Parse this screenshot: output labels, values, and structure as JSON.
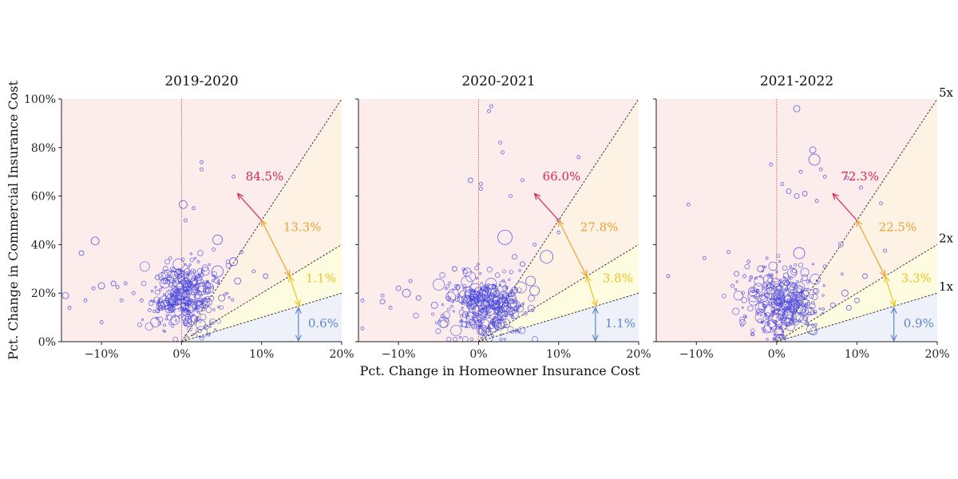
{
  "chart_data": {
    "type": "scatter",
    "xlabel": "Pct. Change in Homeowner Insurance Cost",
    "ylabel": "Pct. Change in Commercial Insurance Cost",
    "xlim": [
      -15,
      20
    ],
    "ylim": [
      0,
      100
    ],
    "x_ticks": [
      "−10%",
      "0%",
      "10%",
      "20%"
    ],
    "x_tick_values": [
      -10,
      0,
      10,
      20
    ],
    "y_ticks": [
      "0%",
      "20%",
      "40%",
      "60%",
      "80%",
      "100%"
    ],
    "y_tick_values": [
      0,
      20,
      40,
      60,
      80,
      100
    ],
    "reference_lines": [
      {
        "label": "5x",
        "slope": 5
      },
      {
        "label": "2x",
        "slope": 2
      },
      {
        "label": "1x",
        "slope": 1
      }
    ],
    "region_colors": {
      "above_5x": "#fdecec",
      "between_2x_5x": "#fdf2e4",
      "between_1x_2x": "#fdfbe0",
      "below_1x": "#eef1fa"
    },
    "label_colors": {
      "above_5x": "#d6264f",
      "between_2x_5x": "#f0a030",
      "between_1x_2x": "#eec21e",
      "below_1x": "#5b86c8"
    },
    "marker_color": "#4444dd",
    "panels": [
      {
        "title": "2019-2020",
        "shares": {
          "above_5x": "84.5%",
          "between_2x_5x": "13.3%",
          "between_1x_2x": "1.1%",
          "below_1x": "0.6%"
        },
        "points": [
          {
            "x": -14.5,
            "y": 19,
            "s": 4
          },
          {
            "x": -14,
            "y": 14,
            "s": 2
          },
          {
            "x": -12.5,
            "y": 36.5,
            "s": 3
          },
          {
            "x": -12,
            "y": 17,
            "s": 2
          },
          {
            "x": -11,
            "y": 22,
            "s": 2
          },
          {
            "x": -10.8,
            "y": 41.5,
            "s": 5
          },
          {
            "x": -10,
            "y": 8,
            "s": 2
          },
          {
            "x": -10,
            "y": 23,
            "s": 4
          },
          {
            "x": -8.5,
            "y": 24,
            "s": 3
          },
          {
            "x": -8,
            "y": 22.5,
            "s": 2
          },
          {
            "x": -7.5,
            "y": 17,
            "s": 2
          },
          {
            "x": -7,
            "y": 24,
            "s": 2
          },
          {
            "x": -6,
            "y": 20,
            "s": 2
          },
          {
            "x": -5,
            "y": 17,
            "s": 2
          },
          {
            "x": -4,
            "y": 13,
            "s": 2
          },
          {
            "x": -3,
            "y": 26.5,
            "s": 3
          },
          {
            "x": -2.5,
            "y": 15,
            "s": 4
          },
          {
            "x": -2,
            "y": 25,
            "s": 3
          },
          {
            "x": 0.2,
            "y": 56.5,
            "s": 5
          },
          {
            "x": 0.5,
            "y": 50,
            "s": 2
          },
          {
            "x": 1.5,
            "y": 55,
            "s": 2
          },
          {
            "x": 2.5,
            "y": 74,
            "s": 2
          },
          {
            "x": 2.5,
            "y": 71,
            "s": 2
          },
          {
            "x": 4.5,
            "y": 42,
            "s": 6
          },
          {
            "x": 4,
            "y": 38,
            "s": 2
          },
          {
            "x": 6.5,
            "y": 68,
            "s": 2
          },
          {
            "x": 6.5,
            "y": 33,
            "s": 5
          },
          {
            "x": 5,
            "y": 18,
            "s": 4
          },
          {
            "x": 4.5,
            "y": 29,
            "s": 7
          },
          {
            "x": 7.5,
            "y": 37,
            "s": 2
          },
          {
            "x": 10.5,
            "y": 27,
            "s": 3
          },
          {
            "x": 7,
            "y": 25,
            "s": 4
          },
          {
            "x": 9,
            "y": 29,
            "s": 2
          }
        ],
        "cluster": {
          "cx": 0.7,
          "cy": 19,
          "sx": 2.2,
          "sy": 7,
          "n": 340,
          "seed": 11
        }
      },
      {
        "title": "2020-2021",
        "shares": {
          "above_5x": "66.0%",
          "between_2x_5x": "27.8%",
          "between_1x_2x": "3.8%",
          "below_1x": "1.1%"
        },
        "points": [
          {
            "x": -14.5,
            "y": 5.5,
            "s": 2
          },
          {
            "x": -14.5,
            "y": 17,
            "s": 2
          },
          {
            "x": -12,
            "y": 19,
            "s": 2
          },
          {
            "x": -12,
            "y": 16.5,
            "s": 3
          },
          {
            "x": -11,
            "y": 14,
            "s": 2
          },
          {
            "x": -10,
            "y": 22,
            "s": 3
          },
          {
            "x": -9,
            "y": 20,
            "s": 5
          },
          {
            "x": -8.5,
            "y": 25,
            "s": 2
          },
          {
            "x": -7.5,
            "y": 18,
            "s": 3
          },
          {
            "x": -5.5,
            "y": 15,
            "s": 4
          },
          {
            "x": -3,
            "y": 30,
            "s": 3
          },
          {
            "x": -1,
            "y": 66.5,
            "s": 3
          },
          {
            "x": 0.3,
            "y": 65,
            "s": 2
          },
          {
            "x": 0.3,
            "y": 63,
            "s": 2
          },
          {
            "x": 1.3,
            "y": 95,
            "s": 2
          },
          {
            "x": 1.6,
            "y": 97,
            "s": 2
          },
          {
            "x": 2.7,
            "y": 82,
            "s": 2
          },
          {
            "x": 3,
            "y": 78,
            "s": 2
          },
          {
            "x": 3.3,
            "y": 43,
            "s": 9
          },
          {
            "x": 5.5,
            "y": 66.5,
            "s": 2
          },
          {
            "x": 8.5,
            "y": 35,
            "s": 8
          },
          {
            "x": 7,
            "y": 40,
            "s": 2
          },
          {
            "x": 10,
            "y": 50,
            "s": 2
          },
          {
            "x": 12.5,
            "y": 76,
            "s": 2
          },
          {
            "x": 7,
            "y": 21,
            "s": 6
          },
          {
            "x": 6.5,
            "y": 25,
            "s": 6
          },
          {
            "x": 4.5,
            "y": 35,
            "s": 3
          },
          {
            "x": 5.5,
            "y": 32,
            "s": 3
          },
          {
            "x": 4,
            "y": 60,
            "s": 2
          },
          {
            "x": 10,
            "y": 45,
            "s": 2
          }
        ],
        "cluster": {
          "cx": 0.9,
          "cy": 14,
          "sx": 2.4,
          "sy": 6.5,
          "n": 340,
          "seed": 23
        }
      },
      {
        "title": "2021-2022",
        "shares": {
          "above_5x": "72.3%",
          "between_2x_5x": "22.5%",
          "between_1x_2x": "3.3%",
          "below_1x": "0.9%"
        },
        "points": [
          {
            "x": -13.5,
            "y": 27,
            "s": 2
          },
          {
            "x": -11,
            "y": 56.5,
            "s": 2
          },
          {
            "x": -9,
            "y": 34.5,
            "s": 2
          },
          {
            "x": -6,
            "y": 37,
            "s": 2
          },
          {
            "x": -5.5,
            "y": 23,
            "s": 2
          },
          {
            "x": -5,
            "y": 28,
            "s": 3
          },
          {
            "x": -4,
            "y": 27,
            "s": 2
          },
          {
            "x": -3.5,
            "y": 33,
            "s": 2
          },
          {
            "x": -2,
            "y": 30,
            "s": 4
          },
          {
            "x": 2.5,
            "y": 96,
            "s": 4
          },
          {
            "x": -0.7,
            "y": 73,
            "s": 2
          },
          {
            "x": 0.7,
            "y": 65,
            "s": 2
          },
          {
            "x": 4.5,
            "y": 79,
            "s": 4
          },
          {
            "x": 4.7,
            "y": 75,
            "s": 7
          },
          {
            "x": 3,
            "y": 70,
            "s": 2
          },
          {
            "x": 1.5,
            "y": 62,
            "s": 3
          },
          {
            "x": 2.5,
            "y": 60,
            "s": 3
          },
          {
            "x": 3.5,
            "y": 61,
            "s": 3
          },
          {
            "x": 5,
            "y": 58,
            "s": 2
          },
          {
            "x": 5.5,
            "y": 71,
            "s": 2
          },
          {
            "x": 6,
            "y": 68,
            "s": 2
          },
          {
            "x": 8.8,
            "y": 67.5,
            "s": 2
          },
          {
            "x": 10.5,
            "y": 63.5,
            "s": 2
          },
          {
            "x": 13,
            "y": 57,
            "s": 2
          },
          {
            "x": 13.5,
            "y": 37.5,
            "s": 2
          },
          {
            "x": 8,
            "y": 40,
            "s": 3
          },
          {
            "x": 11,
            "y": 27,
            "s": 3
          },
          {
            "x": 2.8,
            "y": 36.5,
            "s": 7
          },
          {
            "x": 6,
            "y": 31,
            "s": 2
          },
          {
            "x": 10,
            "y": 17,
            "s": 3
          },
          {
            "x": 9,
            "y": 14,
            "s": 3
          },
          {
            "x": 7,
            "y": 15,
            "s": 3
          },
          {
            "x": 8.5,
            "y": 20,
            "s": 4
          }
        ],
        "cluster": {
          "cx": 0.9,
          "cy": 16,
          "sx": 2.4,
          "sy": 7,
          "n": 340,
          "seed": 37
        }
      }
    ]
  }
}
